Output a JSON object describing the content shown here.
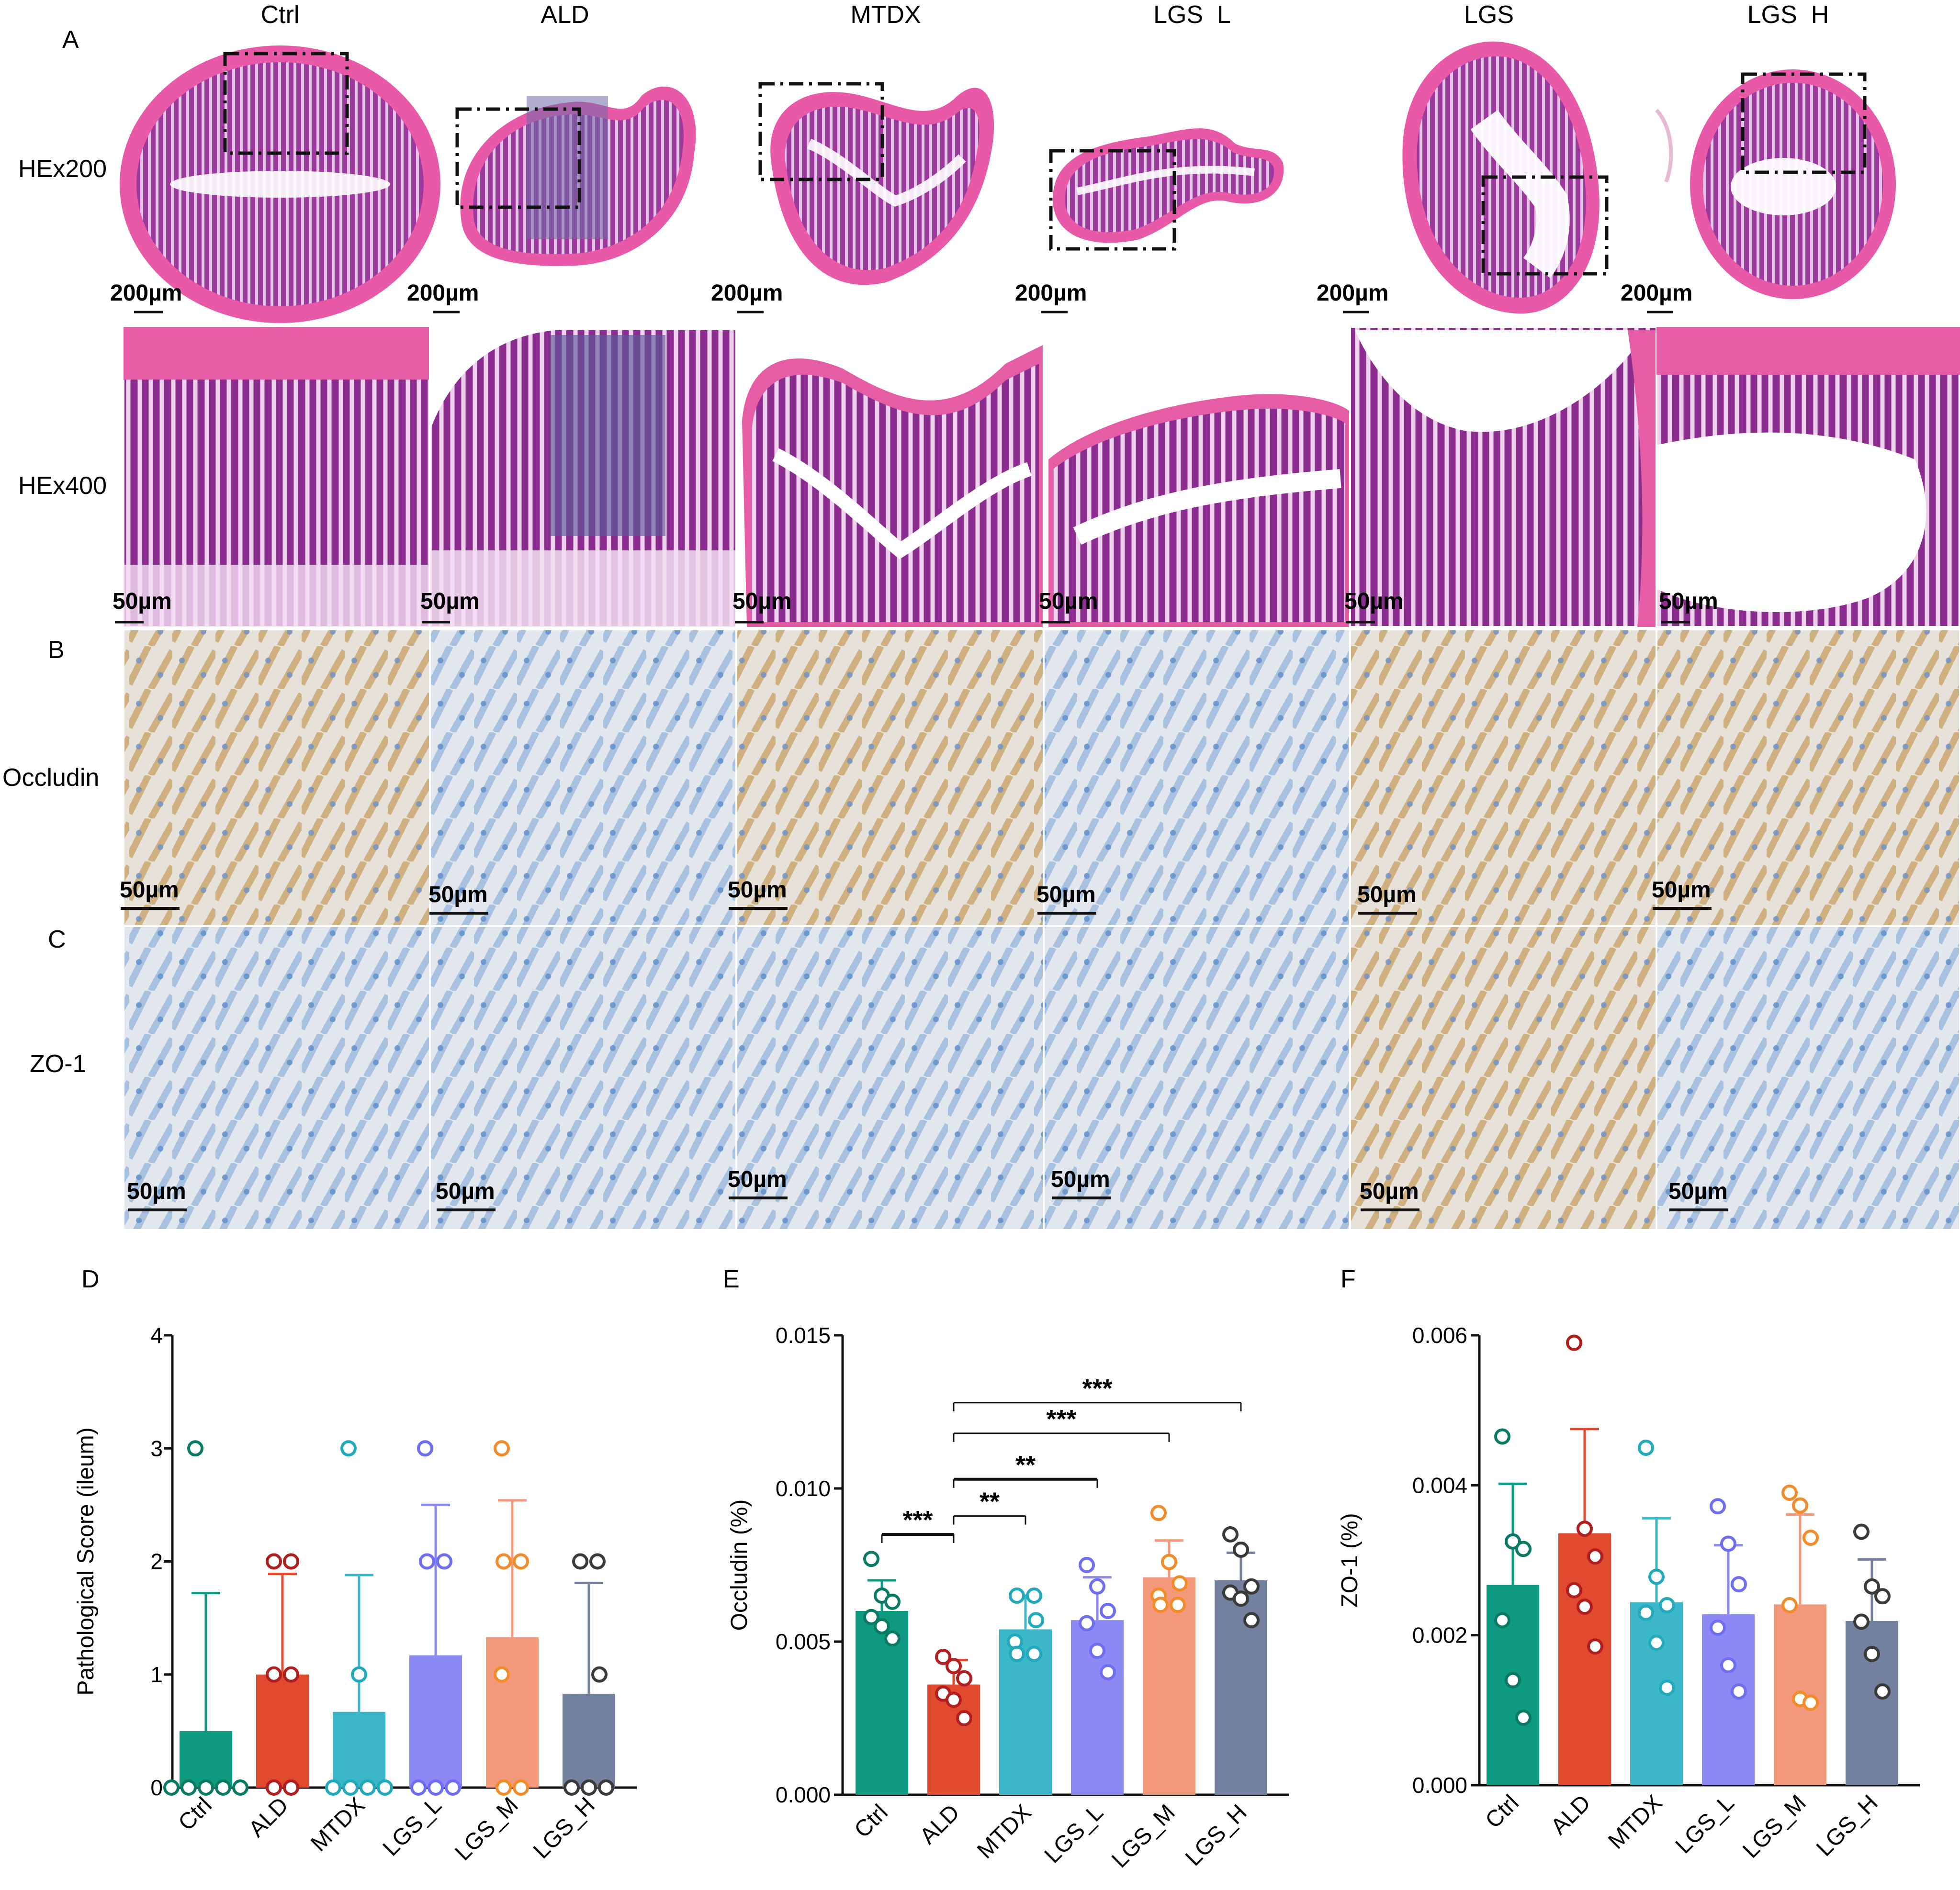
{
  "panel_letters": {
    "A": "A",
    "B": "B",
    "C": "C",
    "D": "D",
    "E": "E",
    "F": "F"
  },
  "column_labels": [
    "Ctrl",
    "ALD",
    "MTDX",
    "LGS  L",
    "LGS",
    "LGS  H"
  ],
  "row_labels": {
    "he200": "HEx200",
    "he400": "HEx400",
    "occludin": "Occludin",
    "zo1": "ZO-1"
  },
  "scale_bars": {
    "he200": [
      "200µm",
      "200µm",
      "200µm",
      "200µm",
      "200µm",
      "200µm"
    ],
    "he400": [
      "50µm",
      "50µm",
      "50µm",
      "50µm",
      "50µm",
      "50µm"
    ],
    "occludin": [
      "50µm",
      "50µm",
      "50µm",
      "50µm",
      "50µm",
      "50µm"
    ],
    "zo1": [
      "50µm",
      "50µm",
      "50µm",
      "50µm",
      "50µm",
      "50µm"
    ]
  },
  "colors": {
    "Ctrl": "#0e9a80",
    "ALD": "#e04a2f",
    "MTDX": "#3bb7c9",
    "LGS_L": "#8b8af5",
    "LGS_M": "#f1997a",
    "LGS_H": "#74819e",
    "points": [
      "#0b7a64",
      "#b01e1e",
      "#22a9bb",
      "#6f6ef2",
      "#f28c2a",
      "#3a3a3a"
    ],
    "he_tissue": "#8c2f8f",
    "he_edge": "#e04fa4",
    "ihc_bg": "#dde5ea",
    "ihc_blue": "#6f9ad0",
    "ihc_brown": "#c89a55"
  },
  "chart_data": [
    {
      "panel": "D",
      "type": "bar",
      "ylabel": "Pathological Score (ileum)",
      "ylim": [
        0,
        4
      ],
      "yticks": [
        0,
        1,
        2,
        3,
        4
      ],
      "categories": [
        "Ctrl",
        "ALD",
        "MTDX",
        "LGS_L",
        "LGS_M",
        "LGS_H"
      ],
      "values": [
        0.5,
        1.0,
        0.67,
        1.17,
        1.33,
        0.83
      ],
      "sd": [
        1.22,
        0.89,
        1.21,
        1.33,
        1.21,
        0.98
      ],
      "points": [
        [
          3,
          0,
          0,
          0,
          0,
          0
        ],
        [
          2,
          2,
          1,
          1,
          0,
          0
        ],
        [
          3,
          1,
          0,
          0,
          0,
          0
        ],
        [
          3,
          2,
          2,
          0,
          0,
          0
        ],
        [
          3,
          2,
          2,
          1,
          0,
          0
        ],
        [
          2,
          2,
          1,
          0,
          0,
          0
        ]
      ],
      "significance": []
    },
    {
      "panel": "E",
      "type": "bar",
      "ylabel": "Occludin (%)",
      "ylim": [
        0,
        0.015
      ],
      "yticks": [
        0,
        0.005,
        0.01,
        0.015
      ],
      "ytick_labels": [
        "0.000",
        "0.005",
        "0.010",
        "0.015"
      ],
      "categories": [
        "Ctrl",
        "ALD",
        "MTDX",
        "LGS_L",
        "LGS_M",
        "LGS_H"
      ],
      "values": [
        0.006,
        0.0036,
        0.0054,
        0.0057,
        0.0071,
        0.007
      ],
      "sd": [
        0.001,
        0.0008,
        0.0011,
        0.0014,
        0.0012,
        0.0009
      ],
      "points": [
        [
          0.0077,
          0.0065,
          0.0063,
          0.0058,
          0.0055,
          0.0051
        ],
        [
          0.0045,
          0.0042,
          0.0038,
          0.0033,
          0.0031,
          0.0025
        ],
        [
          0.0065,
          0.0065,
          0.0057,
          0.005,
          0.0046,
          0.0046
        ],
        [
          0.0075,
          0.0068,
          0.006,
          0.0056,
          0.0047,
          0.004
        ],
        [
          0.0092,
          0.0076,
          0.0069,
          0.0065,
          0.0062,
          0.0062
        ],
        [
          0.0085,
          0.008,
          0.0068,
          0.0066,
          0.0064,
          0.0057
        ]
      ],
      "significance": [
        {
          "from": 0,
          "to": 1,
          "label": "***",
          "y": 0.0085,
          "thick": true
        },
        {
          "from": 1,
          "to": 2,
          "label": "**",
          "y": 0.0091,
          "thick": false
        },
        {
          "from": 1,
          "to": 3,
          "label": "**",
          "y": 0.0103,
          "thick": true
        },
        {
          "from": 1,
          "to": 4,
          "label": "***",
          "y": 0.0118,
          "thick": false
        },
        {
          "from": 1,
          "to": 5,
          "label": "***",
          "y": 0.0128,
          "thick": false
        }
      ]
    },
    {
      "panel": "F",
      "type": "bar",
      "ylabel": "ZO-1 (%)",
      "ylim": [
        0,
        0.006
      ],
      "yticks": [
        0,
        0.002,
        0.004,
        0.006
      ],
      "ytick_labels": [
        "0.000",
        "0.002",
        "0.004",
        "0.006"
      ],
      "categories": [
        "Ctrl",
        "ALD",
        "MTDX",
        "LGS_L",
        "LGS_M",
        "LGS_H"
      ],
      "values": [
        0.00267,
        0.00336,
        0.00244,
        0.00228,
        0.00241,
        0.00219
      ],
      "sd": [
        0.00135,
        0.00139,
        0.00112,
        0.00092,
        0.0012,
        0.00082
      ],
      "points": [
        [
          0.00465,
          0.00325,
          0.00315,
          0.0022,
          0.0014,
          0.0009
        ],
        [
          0.0059,
          0.00342,
          0.00305,
          0.0026,
          0.00238,
          0.00185
        ],
        [
          0.0045,
          0.00278,
          0.0024,
          0.0023,
          0.0019,
          0.0013
        ],
        [
          0.00372,
          0.00322,
          0.00268,
          0.0021,
          0.0016,
          0.00125
        ],
        [
          0.0039,
          0.00373,
          0.0033,
          0.0024,
          0.00115,
          0.0011
        ],
        [
          0.00338,
          0.00265,
          0.00252,
          0.00218,
          0.00175,
          0.00125
        ]
      ],
      "significance": []
    }
  ]
}
